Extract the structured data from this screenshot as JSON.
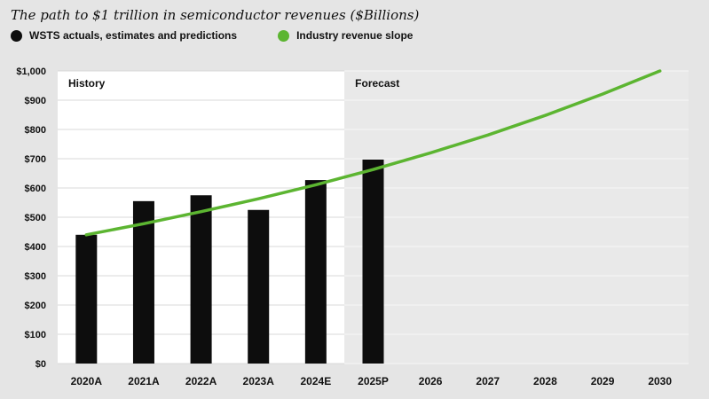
{
  "title": "The path to $1 trillion in semiconductor revenues ($Billions)",
  "legend": [
    {
      "label": "WSTS actuals, estimates and predictions",
      "color": "#0d0d0d"
    },
    {
      "label": "Industry revenue slope",
      "color": "#5cb531"
    }
  ],
  "region_labels": {
    "history": "History",
    "forecast": "Forecast"
  },
  "colors": {
    "background": "#e5e5e5",
    "history_bg": "#ffffff",
    "forecast_bg": "#e9e9e9",
    "grid_history": "#d8d8d8",
    "grid_forecast": "#f7f7f7",
    "bar": "#0d0d0d",
    "line": "#5cb531",
    "text": "#111111"
  },
  "chart_data": {
    "type": "bar",
    "title": "The path to $1 trillion in semiconductor revenues ($Billions)",
    "categories": [
      "2020A",
      "2021A",
      "2022A",
      "2023A",
      "2024E",
      "2025P",
      "2026",
      "2027",
      "2028",
      "2029",
      "2030"
    ],
    "series": [
      {
        "name": "WSTS actuals, estimates and predictions",
        "type": "bar",
        "values": [
          440,
          555,
          575,
          525,
          627,
          697
        ]
      },
      {
        "name": "Industry revenue slope",
        "type": "line",
        "values": [
          440,
          478,
          519,
          563,
          611,
          663,
          720,
          781,
          848,
          921,
          1000
        ]
      }
    ],
    "ylabel": "",
    "xlabel": "",
    "ylim": [
      0,
      1000
    ],
    "ytick_step": 100,
    "ytick_labels": [
      "$0",
      "$100",
      "$200",
      "$300",
      "$400",
      "$500",
      "$600",
      "$700",
      "$800",
      "$900",
      "$1,000"
    ],
    "forecast_start_index": 5,
    "grid": true,
    "legend_position": "top"
  }
}
